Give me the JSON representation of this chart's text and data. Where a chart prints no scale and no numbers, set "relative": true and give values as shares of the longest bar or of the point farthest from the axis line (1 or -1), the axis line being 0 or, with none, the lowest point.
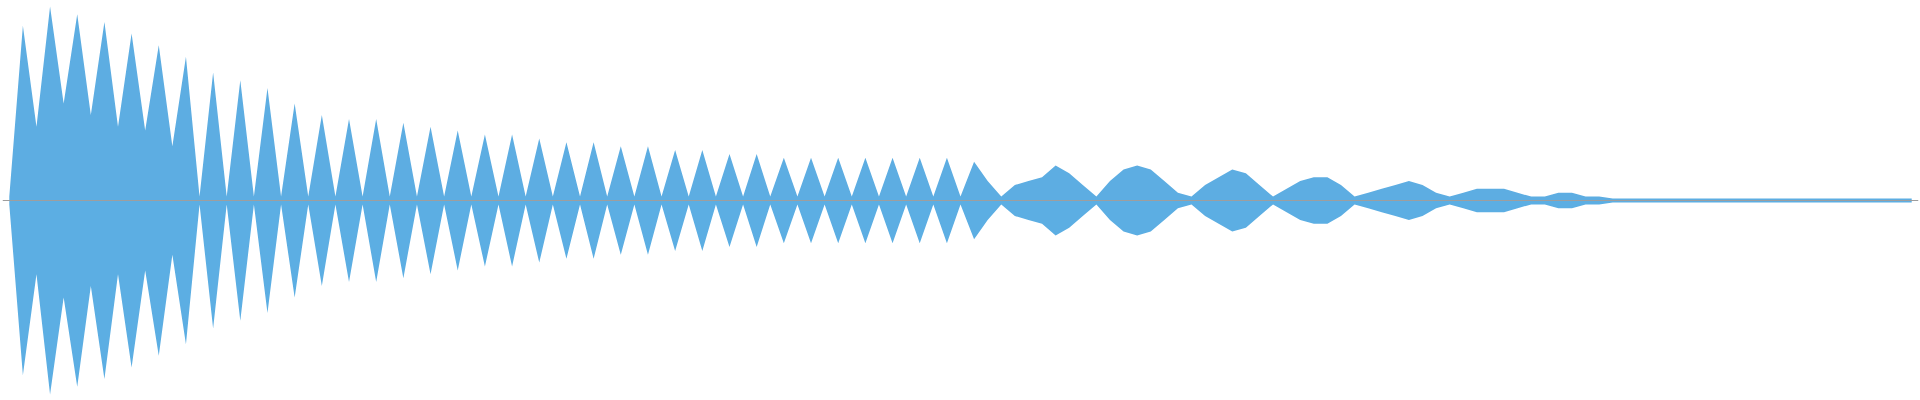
{
  "chart_data": {
    "type": "area",
    "relative": true,
    "grid": false,
    "categories": [
      null,
      null,
      null,
      null,
      null,
      null,
      null,
      null,
      null,
      null,
      null,
      null,
      null,
      null,
      null,
      null,
      null,
      null,
      null,
      null,
      null,
      null,
      null,
      null,
      null,
      null,
      null,
      null,
      null,
      null,
      null,
      null,
      null,
      null,
      null,
      null,
      null,
      null,
      null,
      null,
      null,
      null,
      null,
      null,
      null,
      null,
      null,
      null,
      null,
      null,
      null,
      null,
      null,
      null,
      null,
      null,
      null,
      null,
      null,
      null,
      null,
      null,
      null,
      null,
      null,
      null,
      null,
      null,
      null,
      null,
      null,
      null,
      null,
      null,
      null,
      null,
      null,
      null,
      null,
      null,
      null,
      null,
      null,
      null,
      null,
      null,
      null,
      null,
      null,
      null,
      null,
      null,
      null,
      null,
      null,
      null,
      null,
      null,
      null,
      null,
      null,
      null,
      null,
      null,
      null,
      null,
      null,
      null,
      null,
      null,
      null,
      null,
      null,
      null,
      null,
      null,
      null,
      null,
      null,
      null,
      null,
      null,
      null,
      null,
      null,
      null,
      null,
      null,
      null,
      null,
      null,
      null,
      null,
      null,
      null,
      null,
      null,
      null,
      null,
      null,
      null
    ],
    "series": [
      {
        "color": "#5dade2",
        "values": [
          0.02,
          0.9,
          0.38,
          1.0,
          0.5,
          0.96,
          0.44,
          0.92,
          0.38,
          0.86,
          0.36,
          0.8,
          0.28,
          0.74,
          0.02,
          0.66,
          0.02,
          0.62,
          0.02,
          0.58,
          0.02,
          0.5,
          0.02,
          0.44,
          0.02,
          0.42,
          0.02,
          0.42,
          0.02,
          0.4,
          0.02,
          0.38,
          0.02,
          0.36,
          0.02,
          0.34,
          0.02,
          0.34,
          0.02,
          0.32,
          0.02,
          0.3,
          0.02,
          0.3,
          0.02,
          0.28,
          0.02,
          0.28,
          0.02,
          0.26,
          0.02,
          0.26,
          0.02,
          0.24,
          0.02,
          0.24,
          0.02,
          0.22,
          0.02,
          0.22,
          0.02,
          0.22,
          0.02,
          0.22,
          0.02,
          0.22,
          0.02,
          0.22,
          0.02,
          0.22,
          0.02,
          0.2,
          0.1,
          0.02,
          0.08,
          0.1,
          0.12,
          0.18,
          0.14,
          0.08,
          0.02,
          0.1,
          0.16,
          0.18,
          0.16,
          0.1,
          0.04,
          0.02,
          0.08,
          0.12,
          0.16,
          0.14,
          0.08,
          0.02,
          0.06,
          0.1,
          0.12,
          0.12,
          0.08,
          0.02,
          0.04,
          0.06,
          0.08,
          0.1,
          0.08,
          0.04,
          0.02,
          0.04,
          0.06,
          0.06,
          0.06,
          0.04,
          0.02,
          0.02,
          0.04,
          0.04,
          0.02,
          0.02,
          0.01,
          0.01,
          0.01,
          0.01,
          0.01,
          0.01,
          0.01,
          0.01,
          0.01,
          0.01,
          0.01,
          0.01,
          0.01,
          0.01,
          0.01,
          0.01,
          0.01,
          0.01,
          0.01,
          0.01,
          0.01,
          0.01,
          0.01
        ]
      },
      {
        "color": "#5caee3",
        "values": [
          -0.02,
          -0.9,
          -0.38,
          -1.0,
          -0.5,
          -0.96,
          -0.44,
          -0.92,
          -0.38,
          -0.86,
          -0.36,
          -0.8,
          -0.28,
          -0.74,
          -0.02,
          -0.66,
          -0.02,
          -0.62,
          -0.02,
          -0.58,
          -0.02,
          -0.5,
          -0.02,
          -0.44,
          -0.02,
          -0.42,
          -0.02,
          -0.42,
          -0.02,
          -0.4,
          -0.02,
          -0.38,
          -0.02,
          -0.36,
          -0.02,
          -0.34,
          -0.02,
          -0.34,
          -0.02,
          -0.32,
          -0.02,
          -0.3,
          -0.02,
          -0.3,
          -0.02,
          -0.28,
          -0.02,
          -0.28,
          -0.02,
          -0.26,
          -0.02,
          -0.26,
          -0.02,
          -0.24,
          -0.02,
          -0.24,
          -0.02,
          -0.22,
          -0.02,
          -0.22,
          -0.02,
          -0.22,
          -0.02,
          -0.22,
          -0.02,
          -0.22,
          -0.02,
          -0.22,
          -0.02,
          -0.22,
          -0.02,
          -0.2,
          -0.1,
          -0.02,
          -0.08,
          -0.1,
          -0.12,
          -0.18,
          -0.14,
          -0.08,
          -0.02,
          -0.1,
          -0.16,
          -0.18,
          -0.16,
          -0.1,
          -0.04,
          -0.02,
          -0.08,
          -0.12,
          -0.16,
          -0.14,
          -0.08,
          -0.02,
          -0.06,
          -0.1,
          -0.12,
          -0.12,
          -0.08,
          -0.02,
          -0.04,
          -0.06,
          -0.08,
          -0.1,
          -0.08,
          -0.04,
          -0.02,
          -0.04,
          -0.06,
          -0.06,
          -0.06,
          -0.04,
          -0.02,
          -0.02,
          -0.04,
          -0.04,
          -0.02,
          -0.02,
          -0.01,
          -0.01,
          -0.01,
          -0.01,
          -0.01,
          -0.01,
          -0.01,
          -0.01,
          -0.01,
          -0.01,
          -0.01,
          -0.01,
          -0.01,
          -0.01,
          -0.01,
          -0.01,
          -0.01,
          -0.01,
          -0.01,
          -0.01,
          -0.01,
          -0.01,
          -0.01
        ]
      }
    ]
  }
}
